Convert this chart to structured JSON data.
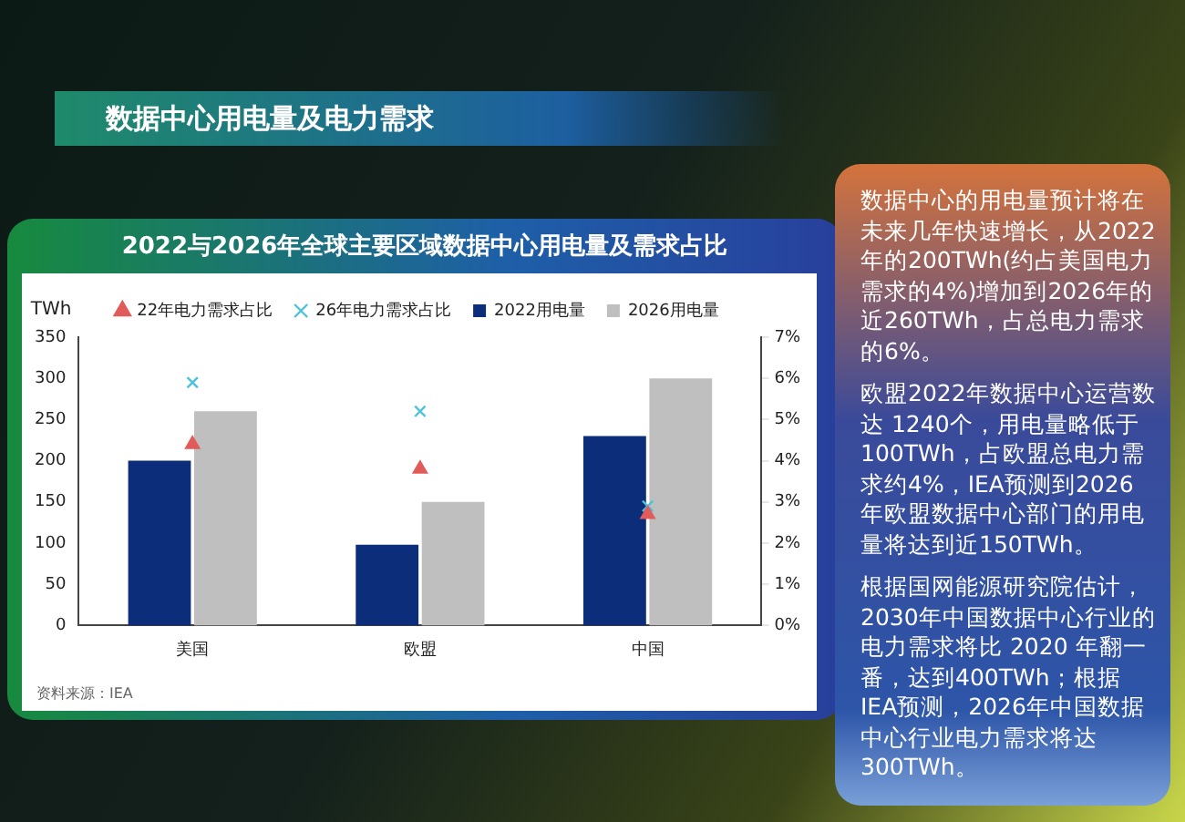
{
  "chart_data": {
    "type": "bar",
    "subtitle": "数据中心用电量及电力需求",
    "title": "2022与2026年全球主要区域数据中心用电量及需求占比",
    "ylabel": "TWh",
    "categories": [
      "美国",
      "欧盟",
      "中国"
    ],
    "series": [
      {
        "name": "2022用电量",
        "color": "#0b2d7a",
        "values": [
          200,
          98,
          230
        ]
      },
      {
        "name": "2026用电量",
        "color": "#bfbfbf",
        "values": [
          260,
          150,
          300
        ]
      },
      {
        "name": "22年电力需求占比",
        "type": "scatter",
        "axis": "y2",
        "marker": "triangle",
        "color": "#e25b5b",
        "x": [
          "美国",
          "欧盟",
          "中国"
        ],
        "values": [
          4.4,
          3.8,
          2.7
        ]
      },
      {
        "name": "26年电力需求占比",
        "type": "scatter",
        "axis": "y2",
        "marker": "cross",
        "color": "#4cc3dc",
        "x": [
          "美国",
          "欧盟",
          "中国"
        ],
        "values": [
          5.9,
          5.2,
          2.9
        ]
      }
    ],
    "ylim": [
      0,
      350
    ],
    "yticks": [
      0,
      50,
      100,
      150,
      200,
      250,
      300,
      350
    ],
    "y2lim": [
      0,
      7
    ],
    "y2ticks": [
      {
        "value": 0,
        "label": "0%"
      },
      {
        "value": 1,
        "label": "1%"
      },
      {
        "value": 2,
        "label": "2%"
      },
      {
        "value": 3,
        "label": "3%"
      },
      {
        "value": 4,
        "label": "4%"
      },
      {
        "value": 5,
        "label": "5%"
      },
      {
        "value": 6,
        "label": "6%"
      },
      {
        "value": 7,
        "label": "7%"
      }
    ],
    "legend": "top",
    "grid": false,
    "annotations": [
      "数据中心的用电量预计将在未来几年快速增长，从2022年的200TWh(约占美国电力需求的4%)增加到2026年的近260TWh，占总电力需求的6%。",
      "欧盟2022年数据中心运营数达 1240个，用电量略低于 100TWh，占欧盟总电力需求约4%，IEA预测到2026年欧盟数据中心部门的用电量将达到近150TWh。",
      "根据国网能源研究院估计，2030年中国数据中心行业的电力需求将比 2020 年翻一番，达到400TWh；根据IEA预测，2026年中国数据中心行业电力需求将达300TWh。",
      "资料来源：IEA"
    ]
  }
}
